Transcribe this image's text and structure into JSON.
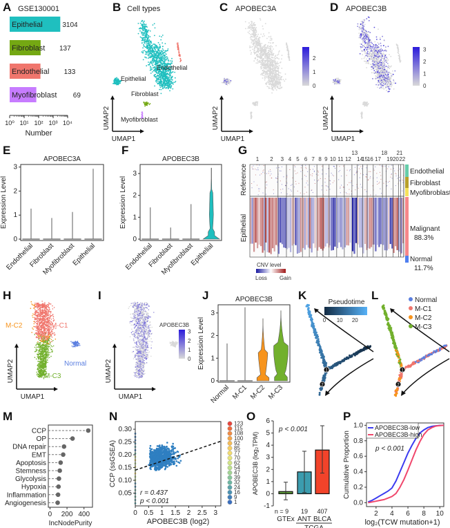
{
  "panels": {
    "A": "A",
    "B": "B",
    "C": "C",
    "D": "D",
    "E": "E",
    "F": "F",
    "G": "G",
    "H": "H",
    "I": "I",
    "J": "J",
    "K": "K",
    "L": "L",
    "M": "M",
    "N": "N",
    "O": "O",
    "P": "P"
  },
  "colors": {
    "epithelial": "#1fbfbf",
    "fibroblast": "#74a813",
    "endothelial": "#f0766d",
    "myofibroblast": "#c77cff",
    "expr_low": "#d9d9d9",
    "expr_high": "#2b1bdb",
    "mc1": "#f0766d",
    "mc2": "#f7941d",
    "mc3": "#72b02d",
    "normal": "#5b7fe0",
    "pseudo_low": "#132b43",
    "pseudo_high": "#56b1f7",
    "scatter": "#2f7fc1",
    "gtex": "#5d9b3a",
    "ant": "#3b9cae",
    "blca": "#f2432a",
    "low_line": "#3b3bf0",
    "high_line": "#f0476c"
  },
  "chart_data": [
    {
      "id": "A",
      "type": "bar",
      "orientation": "horizontal",
      "title": "GSE130001",
      "categories": [
        "Epithelial",
        "Fibroblast",
        "Endothelial",
        "Myofibroblast"
      ],
      "values": [
        3104,
        137,
        133,
        69
      ],
      "value_labels": [
        "3104",
        "137",
        "133",
        "69"
      ],
      "xscale": "log",
      "xlim": [
        1,
        10000
      ],
      "xticks": [
        "10⁰",
        "10¹",
        "10²",
        "10³",
        "10⁴"
      ],
      "xlabel": "Number"
    },
    {
      "id": "B",
      "type": "scatter",
      "title": "Cell types",
      "xlabel": "UMAP1",
      "ylabel": "UMAP2",
      "cluster_labels": [
        "Endothelial",
        "Epithelial",
        "Fibroblast",
        "Myofibroblast"
      ]
    },
    {
      "id": "C",
      "type": "scatter",
      "title": "APOBEC3A",
      "xlabel": "UMAP1",
      "ylabel": "UMAP2",
      "colorbar_ticks": [
        "2",
        "1",
        "0"
      ],
      "colorbar_range": [
        0,
        2.8
      ]
    },
    {
      "id": "D",
      "type": "scatter",
      "title": "APOBEC3B",
      "xlabel": "UMAP1",
      "ylabel": "UMAP2",
      "colorbar_ticks": [
        "3",
        "2",
        "1",
        "0"
      ],
      "colorbar_range": [
        0,
        3.2
      ]
    },
    {
      "id": "E",
      "type": "violin",
      "title": "APOBEC3A",
      "ylabel": "Expression Level",
      "categories": [
        "Endothelial",
        "Fibroblast",
        "Myofibroblast",
        "Epithelial"
      ],
      "max_values": [
        1.27,
        0.88,
        1.13,
        2.93
      ],
      "ylim": [
        0,
        3.05
      ],
      "yticks": [
        "0",
        "1",
        "2",
        "3"
      ]
    },
    {
      "id": "F",
      "type": "violin",
      "title": "APOBEC3B",
      "ylabel": "Expression Level",
      "categories": [
        "Endothelial",
        "Fibroblast",
        "Myofibroblast",
        "Epithelial"
      ],
      "max_values": [
        1.45,
        0.53,
        1.6,
        3.25
      ],
      "ylim": [
        0,
        3.35
      ],
      "yticks": [
        "0",
        "1",
        "2",
        "3"
      ]
    },
    {
      "id": "G",
      "type": "heatmap",
      "chromosomes": [
        "1",
        "2",
        "3",
        "4",
        "5",
        "6",
        "7",
        "8",
        "9",
        "10",
        "11",
        "12",
        "13",
        "14",
        "15",
        "16",
        "17",
        "18",
        "19",
        "20",
        "21",
        "22"
      ],
      "row_groups": [
        "Reference",
        "Epithelial"
      ],
      "annotations": [
        {
          "label": "Endothelial",
          "color": "#66cdaa"
        },
        {
          "label": "Fibroblast",
          "color": "#b8a02a"
        },
        {
          "label": "Myofibroblast",
          "color": "#f5e25c"
        },
        {
          "label": "Malignant",
          "pct": "88.3%",
          "color": "#f6878a"
        },
        {
          "label": "Normal",
          "pct": "11.7%",
          "color": "#4f7ff0"
        }
      ],
      "legend_title": "CNV level",
      "legend_low": "Loss",
      "legend_high": "Gain",
      "loss_color": "#1a1aa0",
      "gain_color": "#a01818"
    },
    {
      "id": "H",
      "type": "scatter",
      "xlabel": "UMAP1",
      "ylabel": "UMAP2",
      "cluster_labels": [
        "M-C2",
        "M-C1",
        "Normal",
        "M-C3"
      ]
    },
    {
      "id": "I",
      "type": "scatter",
      "xlabel": "UMAP1",
      "ylabel": "UMAP2",
      "colorbar_title": "APOBEC3B",
      "colorbar_ticks": [
        "3",
        "2",
        "1",
        "0"
      ],
      "colorbar_range": [
        0,
        3.2
      ]
    },
    {
      "id": "J",
      "type": "violin",
      "title": "APOBEC3B",
      "ylabel": "Expression Level",
      "categories": [
        "Normal",
        "M-C1",
        "M-C2",
        "M-C3"
      ],
      "max_values": [
        1.65,
        3.25,
        2.75,
        3.1
      ],
      "ylim": [
        0,
        3.3
      ],
      "yticks": [
        "0",
        "1",
        "2",
        "3"
      ]
    },
    {
      "id": "K",
      "type": "scatter",
      "legend_title": "Pseudotime",
      "colorbar_ticks": [
        "0",
        "10",
        "20"
      ],
      "colorbar_range": [
        0,
        28
      ],
      "branch_points": [
        "1",
        "2"
      ]
    },
    {
      "id": "L",
      "type": "scatter",
      "legend": [
        "Normal",
        "M-C1",
        "M-C2",
        "M-C3"
      ],
      "branch_points": [
        "1",
        "2"
      ]
    },
    {
      "id": "M",
      "type": "scatter",
      "subtype": "lollipop",
      "categories": [
        "CCP",
        "OP",
        "DNA repair",
        "EMT",
        "Apoptosis",
        "Stemness",
        "Glycolysis",
        "Hypoxia",
        "Inflammation",
        "Angiogenesis"
      ],
      "values": [
        450,
        265,
        165,
        155,
        125,
        115,
        105,
        100,
        95,
        90
      ],
      "xlim": [
        -20,
        500
      ],
      "xticks": [
        0,
        200,
        400
      ],
      "xlabel": "IncNodePurity"
    },
    {
      "id": "N",
      "type": "scatter",
      "subtype": "hexbin",
      "xlabel": "APOBEC3B (log2)",
      "ylabel": "CCP (ssGSEA)",
      "xlim": [
        0,
        3.2
      ],
      "ylim": [
        0,
        0.33
      ],
      "xticks": [
        "0",
        "0.5",
        "1",
        "1.5",
        "2",
        "2.5",
        "3"
      ],
      "yticks": [
        "0.05",
        "0.10",
        "0.15",
        "0.20",
        "0.25",
        "0.30"
      ],
      "annotation_r": "r = 0.437",
      "annotation_p": "p < 0.001",
      "fit_line": {
        "x": [
          0,
          3.2
        ],
        "y": [
          0.14,
          0.253
        ]
      },
      "count_legend": [
        "123",
        "115",
        "108",
        "100",
        "92",
        "85",
        "77",
        "70",
        "62",
        "54",
        "47",
        "39",
        "32",
        "24",
        "16",
        "9",
        "1"
      ]
    },
    {
      "id": "O",
      "type": "bar",
      "ylabel": "APOBEC3B (log₂TPM)",
      "categories": [
        "GTEx",
        "ANT",
        "BLCA"
      ],
      "group_label": "TCGA",
      "n_labels": [
        "n = 9",
        "19",
        "407"
      ],
      "values": [
        0.18,
        1.8,
        3.6
      ],
      "error_upper": [
        0.95,
        3.5,
        5.6
      ],
      "error_lower": [
        -0.5,
        0.1,
        1.7
      ],
      "ylim": [
        -1,
        6
      ],
      "yticks": [
        "-1",
        "0",
        "1",
        "2",
        "3",
        "4",
        "5",
        "6"
      ],
      "annotation": "p < 0.001"
    },
    {
      "id": "P",
      "type": "line",
      "xlabel": "log₂(TCW mutation+1)",
      "ylabel": "Cumulative Proportion",
      "xlim": [
        0.8,
        10.5
      ],
      "ylim": [
        -0.05,
        1.03
      ],
      "xticks": [
        "2",
        "4",
        "6",
        "8",
        "10"
      ],
      "yticks": [
        "0.0",
        "0.2",
        "0.4",
        "0.6",
        "0.8",
        "1.0"
      ],
      "annotation": "p < 0.001",
      "series": [
        {
          "name": "APOBEC3B-low",
          "x": [
            1,
            1.5,
            2,
            2.5,
            3,
            3.5,
            4,
            4.5,
            5,
            5.5,
            6,
            6.5,
            7,
            7.5,
            8,
            8.5,
            9,
            9.5,
            10,
            10.5
          ],
          "y": [
            0.01,
            0.03,
            0.06,
            0.09,
            0.12,
            0.15,
            0.19,
            0.28,
            0.4,
            0.52,
            0.64,
            0.74,
            0.83,
            0.9,
            0.94,
            0.97,
            0.985,
            0.993,
            0.998,
            1.0
          ]
        },
        {
          "name": "APOBEC3B-high",
          "x": [
            1,
            1.5,
            2,
            2.5,
            3,
            3.5,
            4,
            4.5,
            5,
            5.5,
            6,
            6.5,
            7,
            7.5,
            8,
            8.5,
            9,
            9.5,
            10,
            10.5
          ],
          "y": [
            0.0,
            0.01,
            0.02,
            0.03,
            0.04,
            0.06,
            0.08,
            0.12,
            0.2,
            0.3,
            0.42,
            0.55,
            0.68,
            0.79,
            0.88,
            0.94,
            0.97,
            0.99,
            0.997,
            1.0
          ]
        }
      ]
    }
  ]
}
